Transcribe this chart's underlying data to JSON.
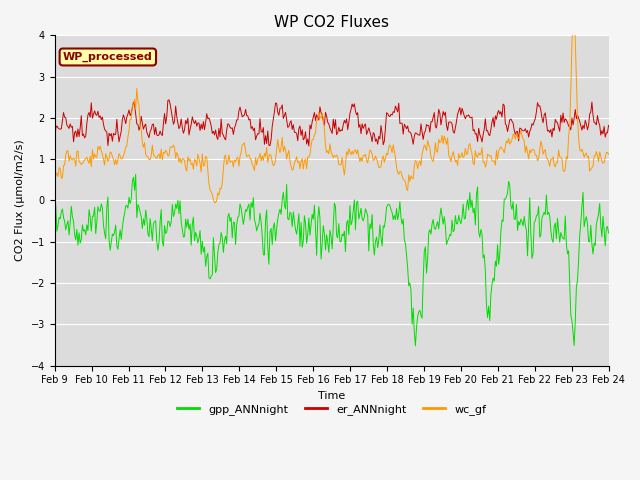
{
  "title": "WP CO2 Fluxes",
  "xlabel": "Time",
  "ylabel": "CO2 Flux (μmol/m2/s)",
  "ylim": [
    -4.0,
    4.0
  ],
  "yticks": [
    -4.0,
    -3.0,
    -2.0,
    -1.0,
    0.0,
    1.0,
    2.0,
    3.0,
    4.0
  ],
  "n_points": 500,
  "bg_color": "#dcdcdc",
  "fig_bg_color": "#f5f5f5",
  "grid_color": "#ffffff",
  "legend_items": [
    "gpp_ANNnight",
    "er_ANNnight",
    "wc_gf"
  ],
  "legend_colors": [
    "#00dd00",
    "#cc0000",
    "#ff9900"
  ],
  "wp_label": "WP_processed",
  "wp_label_color": "#8b0000",
  "wp_box_facecolor": "#ffffaa",
  "wp_box_edgecolor": "#8b0000",
  "title_fontsize": 11,
  "axis_fontsize": 8,
  "tick_fontsize": 7,
  "legend_fontsize": 8
}
